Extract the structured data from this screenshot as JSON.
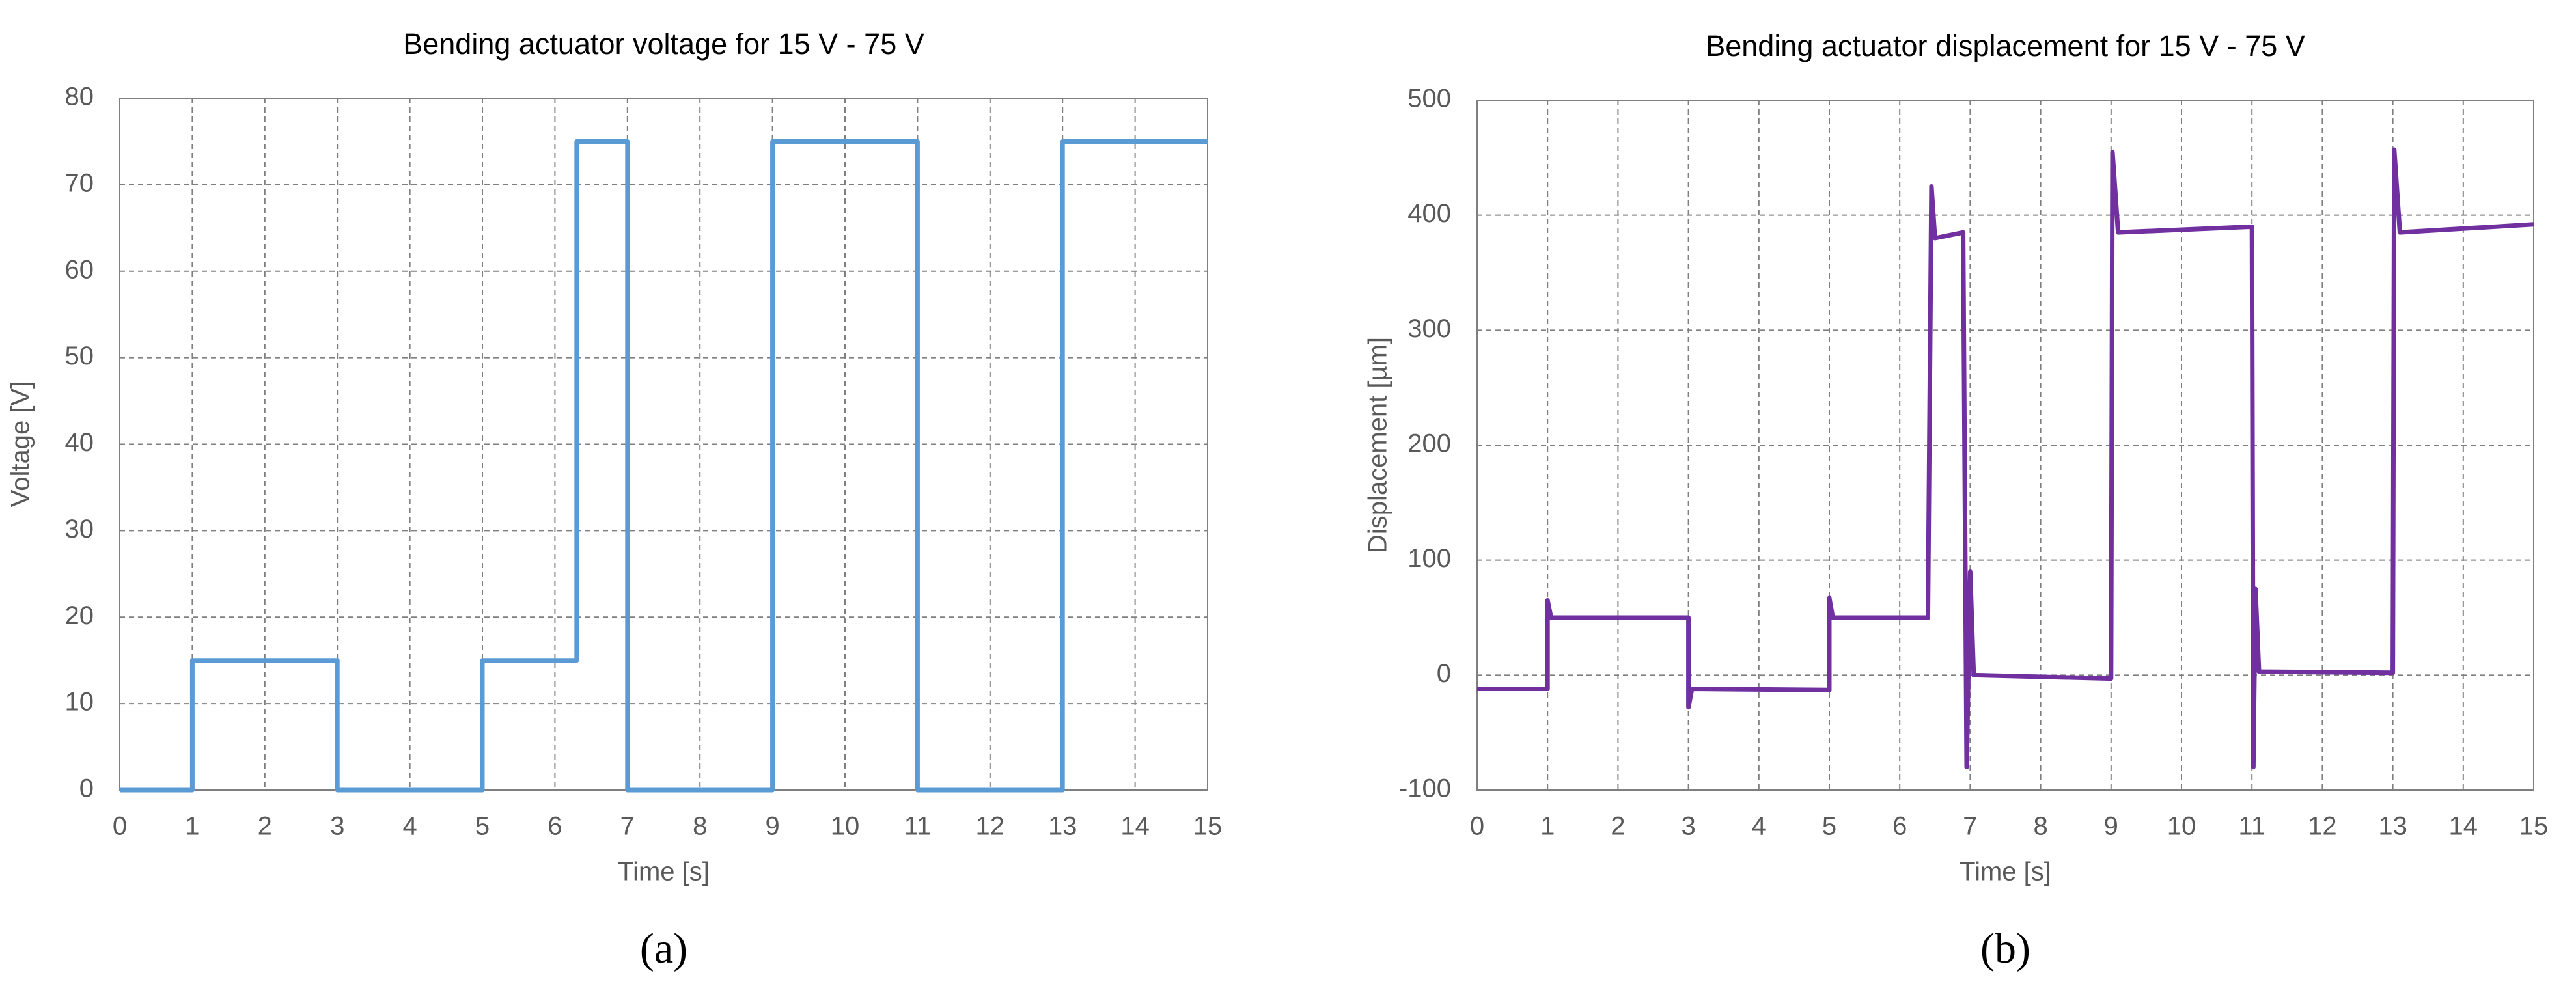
{
  "chart_data": [
    {
      "type": "line",
      "title": "Bending actuator voltage for 15 V - 75 V",
      "panel_label": "(a)",
      "xlabel": "Time [s]",
      "ylabel": "Voltage [V]",
      "xlim": [
        0,
        15
      ],
      "xticks": [
        0,
        1,
        2,
        3,
        4,
        5,
        6,
        7,
        8,
        9,
        10,
        11,
        12,
        13,
        14,
        15
      ],
      "ylim": [
        0,
        80
      ],
      "yticks": [
        0,
        10,
        20,
        30,
        40,
        50,
        60,
        70,
        80
      ],
      "grid": true,
      "x": [
        0,
        1,
        1,
        3,
        3,
        5,
        5,
        6.3,
        6.3,
        7,
        7,
        9,
        9,
        11,
        11,
        13,
        13,
        15
      ],
      "series": [
        {
          "color": "#5b9bd5",
          "values": [
            0,
            0,
            15,
            15,
            0,
            0,
            15,
            15,
            75,
            75,
            0,
            0,
            75,
            75,
            0,
            0,
            75,
            75
          ]
        }
      ]
    },
    {
      "type": "line",
      "title": "Bending actuator displacement for 15 V - 75 V",
      "panel_label": "(b)",
      "xlabel": "Time [s]",
      "ylabel": "Displacement [µm]",
      "xlim": [
        0,
        15
      ],
      "xticks": [
        0,
        1,
        2,
        3,
        4,
        5,
        6,
        7,
        8,
        9,
        10,
        11,
        12,
        13,
        14,
        15
      ],
      "ylim": [
        -100,
        500
      ],
      "yticks": [
        -100,
        0,
        100,
        200,
        300,
        400,
        500
      ],
      "grid": true,
      "x": [
        0,
        1,
        1,
        1.05,
        3,
        3,
        3.05,
        5,
        5,
        5.05,
        6.4,
        6.45,
        6.5,
        6.9,
        6.95,
        7,
        7.05,
        9,
        9.02,
        9.1,
        11,
        11.02,
        11.05,
        11.1,
        13,
        13.02,
        13.1,
        15
      ],
      "series": [
        {
          "color": "#7030a0",
          "values": [
            -12,
            -12,
            65,
            50,
            50,
            -28,
            -12,
            -13,
            67,
            50,
            50,
            425,
            380,
            385,
            -80,
            90,
            0,
            -3,
            455,
            385,
            390,
            -80,
            75,
            3,
            2,
            457,
            385,
            392
          ]
        }
      ]
    }
  ]
}
